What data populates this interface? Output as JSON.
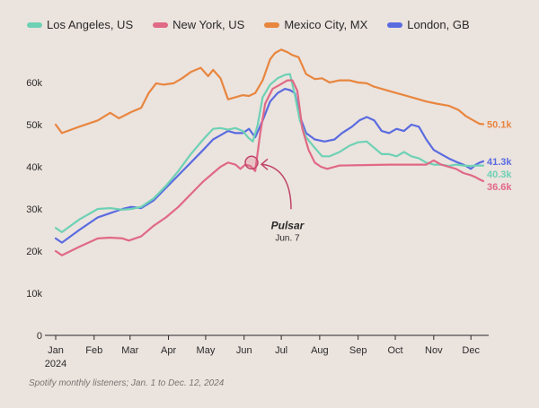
{
  "chart_data": {
    "type": "line",
    "caption": "Spotify monthly listeners; Jan. 1 to Dec. 12, 2024",
    "ylim": [
      0,
      70000
    ],
    "y_ticks": [
      0,
      10000,
      20000,
      30000,
      40000,
      50000,
      60000
    ],
    "y_tick_labels": [
      "0",
      "10k",
      "20k",
      "30k",
      "40k",
      "50k",
      "60k"
    ],
    "x_range": [
      1,
      346
    ],
    "x_ticks": [
      1,
      32,
      61,
      92,
      122,
      153,
      183,
      214,
      245,
      275,
      306,
      336
    ],
    "x_tick_labels": [
      "Jan",
      "Feb",
      "Mar",
      "Apr",
      "May",
      "Jun",
      "Jul",
      "Aug",
      "Sep",
      "Oct",
      "Nov",
      "Dec"
    ],
    "x_year_label": "2024",
    "series": [
      {
        "name": "Mexico City, MX",
        "color": "#e8863f",
        "end_label": "50.1k",
        "x": [
          1,
          6,
          20,
          35,
          45,
          52,
          62,
          70,
          76,
          82,
          88,
          96,
          103,
          110,
          118,
          124,
          128,
          134,
          140,
          146,
          152,
          157,
          162,
          168,
          174,
          178,
          183,
          188,
          192,
          197,
          203,
          210,
          216,
          222,
          230,
          238,
          245,
          252,
          258,
          264,
          270,
          276,
          282,
          288,
          294,
          300,
          308,
          318,
          326,
          332,
          338,
          343,
          346
        ],
        "y": [
          50000,
          48000,
          49500,
          51000,
          52800,
          51500,
          53000,
          54000,
          57500,
          59800,
          59500,
          59800,
          61000,
          62500,
          63500,
          61500,
          63000,
          61000,
          56000,
          56500,
          57000,
          56800,
          57500,
          60500,
          65500,
          67000,
          67800,
          67200,
          66500,
          66000,
          62000,
          60800,
          61000,
          60000,
          60500,
          60500,
          60000,
          59800,
          59000,
          58500,
          58000,
          57500,
          57000,
          56500,
          56000,
          55500,
          55000,
          54500,
          53500,
          52000,
          51000,
          50200,
          50100
        ]
      },
      {
        "name": "London, GB",
        "color": "#5a6be0",
        "end_label": "41.3k",
        "x": [
          1,
          6,
          20,
          35,
          45,
          55,
          62,
          70,
          80,
          90,
          100,
          110,
          120,
          128,
          134,
          140,
          146,
          152,
          157,
          162,
          168,
          174,
          180,
          186,
          190,
          194,
          198,
          203,
          210,
          218,
          226,
          232,
          240,
          246,
          252,
          258,
          264,
          270,
          276,
          282,
          288,
          294,
          300,
          306,
          312,
          318,
          324,
          330,
          336,
          340,
          343,
          346
        ],
        "y": [
          23000,
          22000,
          25000,
          28000,
          29000,
          30000,
          30500,
          30200,
          32000,
          35000,
          38000,
          41000,
          44000,
          46500,
          47500,
          48500,
          48000,
          48000,
          49000,
          47000,
          51000,
          55500,
          57500,
          58500,
          58200,
          57500,
          52000,
          48000,
          46500,
          46000,
          46500,
          48000,
          49500,
          51000,
          51800,
          51000,
          48500,
          48000,
          49000,
          48500,
          50000,
          49500,
          46500,
          44000,
          43000,
          42000,
          41200,
          40500,
          39500,
          40500,
          41000,
          41300
        ]
      },
      {
        "name": "Los Angeles, US",
        "color": "#6ed1b5",
        "end_label": "40.3k",
        "x": [
          1,
          6,
          20,
          35,
          45,
          55,
          62,
          70,
          80,
          90,
          100,
          110,
          120,
          128,
          134,
          140,
          146,
          152,
          156,
          160,
          164,
          168,
          174,
          180,
          186,
          190,
          194,
          198,
          203,
          210,
          216,
          222,
          230,
          238,
          245,
          252,
          258,
          264,
          270,
          276,
          282,
          288,
          294,
          300,
          306,
          312,
          318,
          324,
          330,
          336,
          340,
          343,
          346
        ],
        "y": [
          25500,
          24500,
          27500,
          30000,
          30200,
          29800,
          30000,
          30500,
          32500,
          35500,
          39000,
          43000,
          46500,
          49000,
          49200,
          48800,
          49200,
          48500,
          47000,
          46000,
          50000,
          56500,
          59500,
          61000,
          61800,
          62000,
          57000,
          51000,
          47000,
          44500,
          42500,
          42500,
          43500,
          45000,
          45800,
          46000,
          44500,
          43000,
          43000,
          42500,
          43500,
          42500,
          42000,
          41000,
          40500,
          40500,
          40200,
          40500,
          40300,
          40200,
          40300,
          40300,
          40300
        ]
      },
      {
        "name": "New York, US",
        "color": "#e06985",
        "end_label": "36.6k",
        "x": [
          1,
          6,
          20,
          35,
          45,
          55,
          60,
          70,
          80,
          90,
          100,
          110,
          120,
          128,
          134,
          140,
          146,
          150,
          154,
          158,
          162,
          166,
          170,
          176,
          182,
          188,
          192,
          196,
          200,
          205,
          210,
          215,
          220,
          230,
          250,
          270,
          290,
          300,
          306,
          312,
          318,
          324,
          330,
          336,
          340,
          343,
          346
        ],
        "y": [
          20000,
          19000,
          21000,
          23000,
          23200,
          23000,
          22500,
          23500,
          26000,
          28000,
          30500,
          33500,
          36500,
          38500,
          40000,
          41000,
          40500,
          39500,
          40500,
          40200,
          39000,
          48000,
          55000,
          58500,
          59500,
          60500,
          60500,
          58000,
          49000,
          44000,
          41000,
          40000,
          39500,
          40300,
          40400,
          40500,
          40500,
          40500,
          41500,
          40500,
          40000,
          39500,
          38500,
          38000,
          37500,
          37000,
          36600
        ]
      }
    ],
    "annotation": {
      "title": "Pulsar",
      "subtitle": "Jun. 7",
      "x": 159,
      "y": 41000,
      "color": "#c0446a"
    }
  }
}
